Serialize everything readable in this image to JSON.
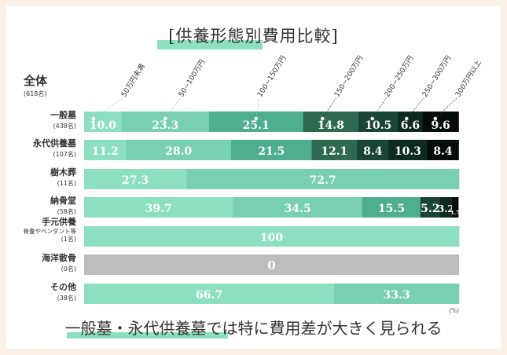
{
  "title": "[供養形態別費用比較]",
  "subtitle": "一般墓・永代供養墓では特に費用差が大きく見られる",
  "overall": {
    "label": "全体",
    "count": "(618名)"
  },
  "unit": "(%)",
  "chart_data": {
    "type": "bar",
    "orientation": "horizontal",
    "stacked": true,
    "xlim": [
      0,
      100
    ],
    "legend": [
      "50万円未満",
      "50~100万円",
      "100~150万円",
      "150~200万円",
      "200~250万円",
      "250~300万円",
      "300万円以上"
    ],
    "colors": [
      "#8de0bf",
      "#79cfb1",
      "#4fae8f",
      "#2e6a50",
      "#1a4535",
      "#0e2a1e",
      "#050d09"
    ],
    "empty_color": "#bdbdbd",
    "categories": [
      {
        "name": "一般墓",
        "note": "",
        "count": "(438名)",
        "values": [
          10.0,
          23.3,
          25.1,
          14.8,
          10.5,
          6.6,
          9.6
        ]
      },
      {
        "name": "永代供養墓",
        "note": "",
        "count": "(107名)",
        "values": [
          11.2,
          28.0,
          21.5,
          12.1,
          8.4,
          10.3,
          8.4
        ]
      },
      {
        "name": "樹木葬",
        "note": "",
        "count": "(11名)",
        "values": [
          27.3,
          72.7,
          0,
          0,
          0,
          0,
          0
        ]
      },
      {
        "name": "納骨堂",
        "note": "",
        "count": "(58名)",
        "values": [
          39.7,
          34.5,
          15.5,
          0,
          5.2,
          3.2,
          1.7
        ]
      },
      {
        "name": "手元供養",
        "note": "骨壷やペンダント等",
        "count": "(1名)",
        "values": [
          100,
          0,
          0,
          0,
          0,
          0,
          0
        ]
      },
      {
        "name": "海洋散骨",
        "note": "",
        "count": "(0名)",
        "values": [
          0,
          0,
          0,
          0,
          0,
          0,
          0
        ],
        "empty_label": "0"
      },
      {
        "name": "その他",
        "note": "",
        "count": "(38名)",
        "values": [
          66.7,
          33.3,
          0,
          0,
          0,
          0,
          0
        ]
      }
    ]
  }
}
